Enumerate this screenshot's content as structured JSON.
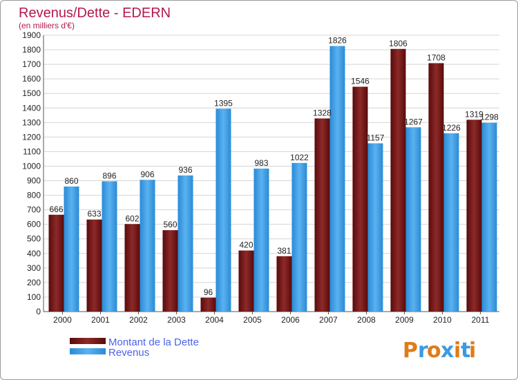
{
  "chart_data": {
    "type": "bar",
    "title": "Revenus/Dette - EDERN",
    "subtitle": "(en milliers d'€)",
    "categories": [
      "2000",
      "2001",
      "2002",
      "2003",
      "2004",
      "2005",
      "2006",
      "2007",
      "2008",
      "2009",
      "2010",
      "2011"
    ],
    "series": [
      {
        "name": "Montant de la Dette",
        "color": "#7a1414",
        "values": [
          666,
          633,
          602,
          560,
          96,
          420,
          381,
          1328,
          1546,
          1806,
          1708,
          1319
        ]
      },
      {
        "name": "Revenus",
        "color": "#3b9be0",
        "values": [
          860,
          896,
          906,
          936,
          1395,
          983,
          1022,
          1826,
          1157,
          1267,
          1226,
          1298
        ]
      }
    ],
    "ylim": [
      0,
      1900
    ],
    "yticks": [
      0,
      100,
      200,
      300,
      400,
      500,
      600,
      700,
      800,
      900,
      1000,
      1100,
      1200,
      1300,
      1400,
      1500,
      1600,
      1700,
      1800,
      1900
    ],
    "grid": true,
    "legend": "bottom-left"
  },
  "logo": {
    "letters": [
      "P",
      "r",
      "o",
      "x",
      "i",
      "t",
      "i"
    ],
    "colors": [
      "#e07b1a",
      "#3b9be0",
      "#e07b1a",
      "#3b9be0",
      "#e07b1a",
      "#3b9be0",
      "#e07b1a"
    ]
  }
}
